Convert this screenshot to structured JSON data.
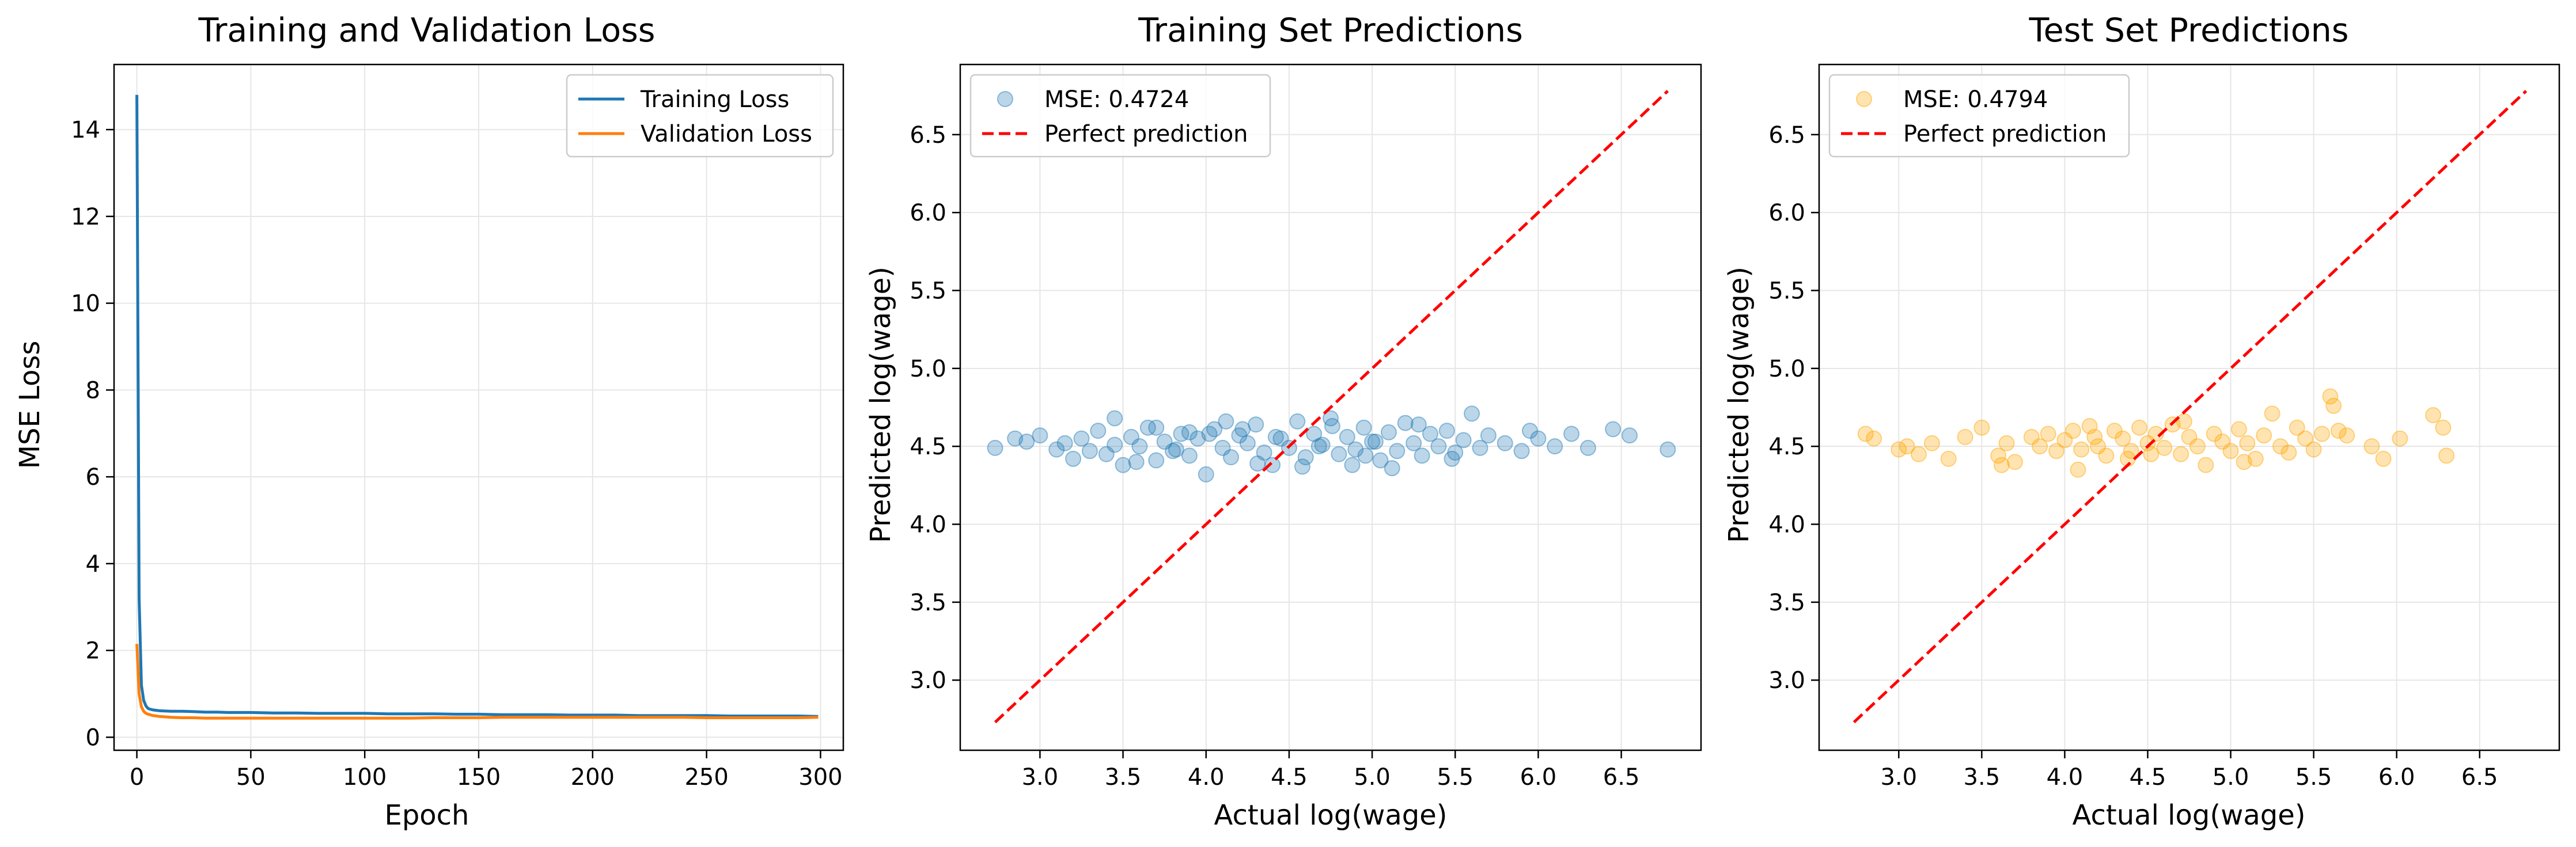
{
  "colors": {
    "training": "#1f77b4",
    "validation": "#ff7f0e",
    "train_points": "#1f77b4",
    "test_points": "#ffa500",
    "perfect_line": "#ff0000",
    "grid": "#e6e6e6"
  },
  "chart_data": [
    {
      "type": "line",
      "title": "Training and Validation Loss",
      "xlabel": "Epoch",
      "ylabel": "MSE Loss",
      "xlim": [
        -10,
        310
      ],
      "ylim": [
        -0.3,
        15.5
      ],
      "xticks": [
        0,
        50,
        100,
        150,
        200,
        250,
        300
      ],
      "yticks": [
        0,
        2,
        4,
        6,
        8,
        10,
        12,
        14
      ],
      "grid": true,
      "legend_position": "top-right",
      "series": [
        {
          "name": "Training Loss",
          "color": "#1f77b4",
          "x": [
            0,
            1,
            2,
            3,
            4,
            5,
            7,
            10,
            15,
            20,
            25,
            30,
            35,
            40,
            50,
            60,
            70,
            80,
            90,
            100,
            110,
            120,
            130,
            140,
            150,
            160,
            170,
            180,
            190,
            200,
            210,
            220,
            230,
            240,
            250,
            260,
            270,
            280,
            290,
            299
          ],
          "y": [
            14.8,
            3.2,
            1.2,
            0.85,
            0.72,
            0.66,
            0.63,
            0.61,
            0.6,
            0.6,
            0.59,
            0.58,
            0.58,
            0.57,
            0.57,
            0.56,
            0.56,
            0.55,
            0.55,
            0.55,
            0.54,
            0.54,
            0.54,
            0.53,
            0.53,
            0.52,
            0.52,
            0.52,
            0.51,
            0.51,
            0.51,
            0.5,
            0.5,
            0.5,
            0.5,
            0.49,
            0.49,
            0.49,
            0.49,
            0.48
          ]
        },
        {
          "name": "Validation Loss",
          "color": "#ff7f0e",
          "x": [
            0,
            1,
            2,
            3,
            4,
            5,
            7,
            10,
            15,
            20,
            25,
            30,
            35,
            40,
            50,
            60,
            70,
            80,
            90,
            100,
            110,
            120,
            130,
            140,
            150,
            160,
            170,
            180,
            190,
            200,
            210,
            220,
            230,
            240,
            250,
            260,
            270,
            280,
            290,
            299
          ],
          "y": [
            2.15,
            1.0,
            0.7,
            0.6,
            0.55,
            0.53,
            0.5,
            0.48,
            0.46,
            0.45,
            0.45,
            0.44,
            0.44,
            0.44,
            0.44,
            0.44,
            0.44,
            0.44,
            0.44,
            0.44,
            0.44,
            0.44,
            0.45,
            0.45,
            0.45,
            0.46,
            0.46,
            0.46,
            0.46,
            0.46,
            0.46,
            0.46,
            0.46,
            0.46,
            0.45,
            0.45,
            0.45,
            0.45,
            0.45,
            0.46
          ]
        }
      ]
    },
    {
      "type": "scatter",
      "title": "Training Set Predictions",
      "xlabel": "Actual log(wage)",
      "ylabel": "Predicted log(wage)",
      "xlim": [
        2.52,
        6.98
      ],
      "ylim": [
        2.55,
        6.95
      ],
      "xticks": [
        3.0,
        3.5,
        4.0,
        4.5,
        5.0,
        5.5,
        6.0,
        6.5
      ],
      "yticks": [
        3.0,
        3.5,
        4.0,
        4.5,
        5.0,
        5.5,
        6.0,
        6.5
      ],
      "grid": true,
      "legend_position": "top-left",
      "series": [
        {
          "name": "MSE: 0.4724",
          "color": "#1f77b4",
          "x": [
            2.73,
            2.85,
            2.92,
            3.0,
            3.1,
            3.15,
            3.2,
            3.25,
            3.3,
            3.35,
            3.4,
            3.45,
            3.5,
            3.55,
            3.6,
            3.65,
            3.7,
            3.75,
            3.8,
            3.85,
            3.9,
            3.95,
            4.0,
            4.05,
            4.1,
            4.15,
            4.2,
            4.25,
            4.3,
            4.35,
            4.4,
            4.45,
            4.5,
            4.55,
            4.6,
            4.65,
            4.7,
            4.75,
            4.8,
            4.85,
            4.9,
            4.95,
            5.0,
            5.05,
            5.1,
            5.15,
            5.2,
            5.25,
            5.3,
            5.35,
            5.4,
            5.45,
            5.5,
            5.55,
            5.6,
            5.65,
            5.7,
            5.8,
            5.9,
            5.95,
            6.0,
            6.1,
            6.2,
            6.3,
            6.45,
            6.55,
            6.78,
            3.45,
            3.7,
            4.02,
            4.31,
            4.58,
            4.76,
            5.12,
            5.28,
            3.58,
            4.12,
            4.88,
            5.48,
            4.42,
            3.9,
            4.68,
            5.02,
            3.82,
            4.22,
            4.96
          ],
          "y": [
            4.49,
            4.55,
            4.53,
            4.57,
            4.48,
            4.52,
            4.42,
            4.55,
            4.47,
            4.6,
            4.45,
            4.51,
            4.38,
            4.56,
            4.5,
            4.62,
            4.41,
            4.53,
            4.47,
            4.58,
            4.44,
            4.55,
            4.32,
            4.61,
            4.49,
            4.43,
            4.57,
            4.52,
            4.64,
            4.46,
            4.38,
            4.55,
            4.49,
            4.66,
            4.43,
            4.58,
            4.51,
            4.68,
            4.45,
            4.56,
            4.48,
            4.62,
            4.53,
            4.41,
            4.59,
            4.47,
            4.65,
            4.52,
            4.44,
            4.58,
            4.5,
            4.6,
            4.46,
            4.54,
            4.71,
            4.49,
            4.57,
            4.52,
            4.47,
            4.6,
            4.55,
            4.5,
            4.58,
            4.49,
            4.61,
            4.57,
            4.48,
            4.68,
            4.62,
            4.58,
            4.39,
            4.37,
            4.63,
            4.36,
            4.64,
            4.4,
            4.66,
            4.38,
            4.42,
            4.56,
            4.59,
            4.5,
            4.53,
            4.48,
            4.61,
            4.44
          ]
        },
        {
          "name": "Perfect prediction",
          "color": "#ff0000",
          "style": "dashed",
          "x": [
            2.73,
            6.78
          ],
          "y": [
            2.73,
            6.78
          ]
        }
      ]
    },
    {
      "type": "scatter",
      "title": "Test Set Predictions",
      "xlabel": "Actual log(wage)",
      "ylabel": "Predicted log(wage)",
      "xlim": [
        2.52,
        6.98
      ],
      "ylim": [
        2.55,
        6.95
      ],
      "xticks": [
        3.0,
        3.5,
        4.0,
        4.5,
        5.0,
        5.5,
        6.0,
        6.5
      ],
      "yticks": [
        3.0,
        3.5,
        4.0,
        4.5,
        5.0,
        5.5,
        6.0,
        6.5
      ],
      "grid": true,
      "legend_position": "top-left",
      "series": [
        {
          "name": "MSE: 0.4794",
          "color": "#ffa500",
          "x": [
            2.8,
            2.85,
            3.0,
            3.05,
            3.12,
            3.2,
            3.3,
            3.4,
            3.5,
            3.6,
            3.65,
            3.7,
            3.8,
            3.85,
            3.9,
            3.95,
            4.0,
            4.05,
            4.1,
            4.15,
            4.2,
            4.25,
            4.3,
            4.35,
            4.4,
            4.45,
            4.5,
            4.55,
            4.6,
            4.65,
            4.7,
            4.75,
            4.8,
            4.85,
            4.9,
            4.95,
            5.0,
            5.05,
            5.1,
            5.15,
            5.2,
            5.25,
            5.3,
            5.35,
            5.4,
            5.45,
            5.5,
            5.55,
            5.6,
            5.65,
            5.7,
            5.85,
            5.92,
            6.02,
            6.22,
            6.28,
            6.3,
            3.62,
            4.08,
            4.38,
            4.72,
            5.08,
            5.62,
            4.18,
            4.52
          ],
          "y": [
            4.58,
            4.55,
            4.48,
            4.5,
            4.45,
            4.52,
            4.42,
            4.56,
            4.62,
            4.44,
            4.52,
            4.4,
            4.56,
            4.5,
            4.58,
            4.47,
            4.54,
            4.6,
            4.48,
            4.63,
            4.5,
            4.44,
            4.6,
            4.55,
            4.47,
            4.62,
            4.52,
            4.58,
            4.49,
            4.64,
            4.45,
            4.56,
            4.5,
            4.38,
            4.58,
            4.53,
            4.47,
            4.61,
            4.52,
            4.42,
            4.57,
            4.71,
            4.5,
            4.46,
            4.62,
            4.55,
            4.48,
            4.58,
            4.82,
            4.6,
            4.57,
            4.5,
            4.42,
            4.55,
            4.7,
            4.62,
            4.44,
            4.38,
            4.35,
            4.42,
            4.66,
            4.4,
            4.76,
            4.56,
            4.45
          ]
        },
        {
          "name": "Perfect prediction",
          "color": "#ff0000",
          "style": "dashed",
          "x": [
            2.73,
            6.78
          ],
          "y": [
            2.73,
            6.78
          ]
        }
      ]
    }
  ]
}
